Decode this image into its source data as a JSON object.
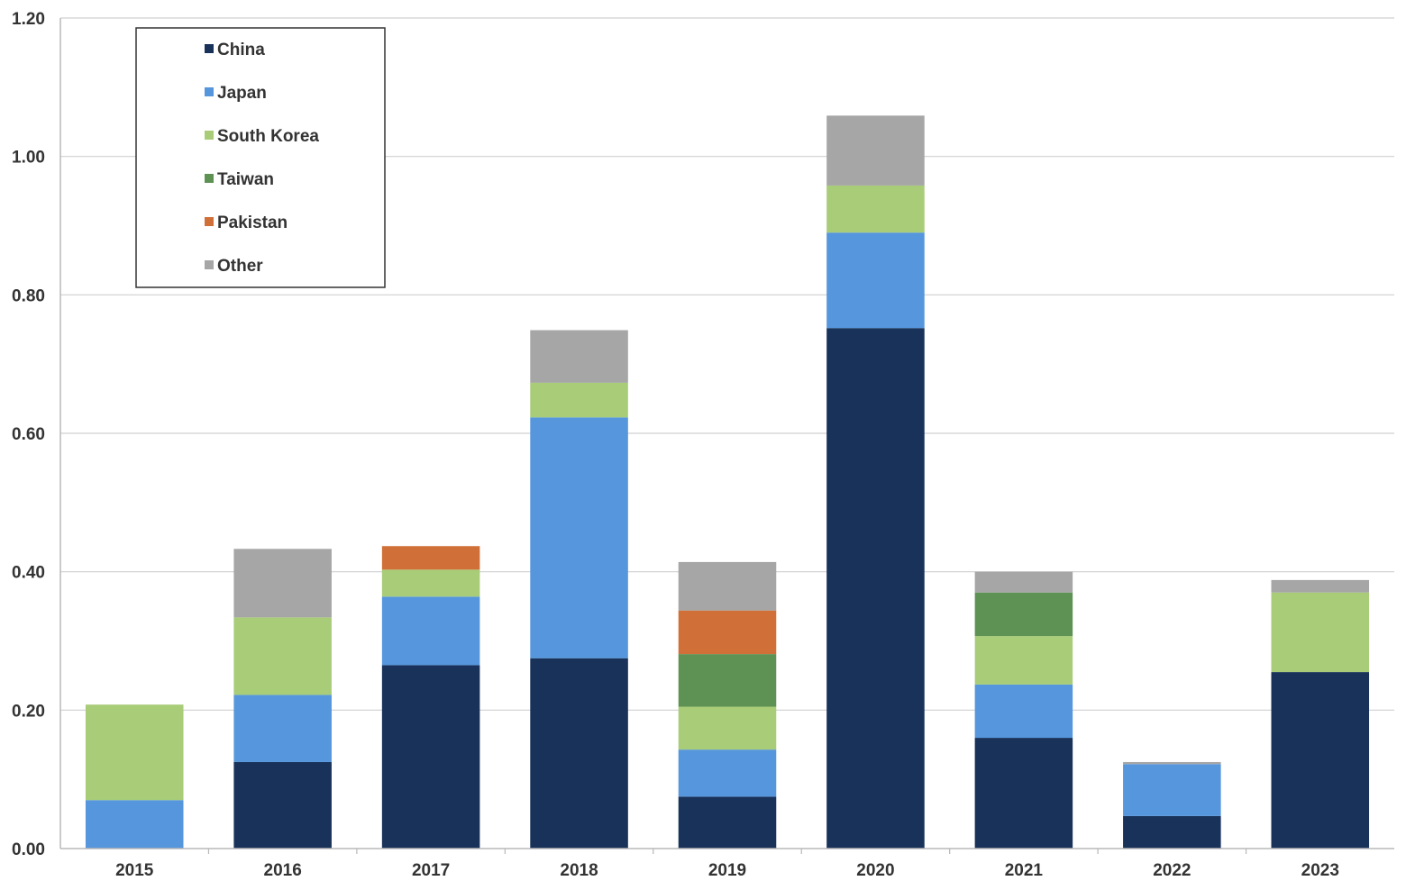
{
  "chart_data": {
    "type": "bar",
    "stacked": true,
    "title": "",
    "xlabel": "",
    "ylabel": "",
    "categories": [
      "2015",
      "2016",
      "2017",
      "2018",
      "2019",
      "2020",
      "2021",
      "2022",
      "2023"
    ],
    "series": [
      {
        "name": "China",
        "color": "#18325a",
        "values": [
          0.0,
          0.125,
          0.265,
          0.275,
          0.075,
          0.752,
          0.16,
          0.047,
          0.255
        ]
      },
      {
        "name": "Japan",
        "color": "#5596dc",
        "values": [
          0.07,
          0.097,
          0.099,
          0.348,
          0.068,
          0.138,
          0.077,
          0.075,
          0.0
        ]
      },
      {
        "name": "South Korea",
        "color": "#a8cc78",
        "values": [
          0.138,
          0.112,
          0.039,
          0.05,
          0.062,
          0.068,
          0.07,
          0.0,
          0.115
        ]
      },
      {
        "name": "Taiwan",
        "color": "#5e9254",
        "values": [
          0.0,
          0.0,
          0.0,
          0.0,
          0.076,
          0.0,
          0.063,
          0.0,
          0.0
        ]
      },
      {
        "name": "Pakistan",
        "color": "#d07038",
        "values": [
          0.0,
          0.0,
          0.034,
          0.0,
          0.063,
          0.0,
          0.0,
          0.0,
          0.0
        ]
      },
      {
        "name": "Other",
        "color": "#a6a6a6",
        "values": [
          0.0,
          0.099,
          0.0,
          0.076,
          0.07,
          0.101,
          0.03,
          0.003,
          0.018
        ]
      }
    ],
    "ylim": [
      0,
      1.2
    ],
    "yticks": [
      "0.00",
      "0.20",
      "0.40",
      "0.60",
      "0.80",
      "1.00",
      "1.20"
    ],
    "grid": true,
    "legend_position": "top-left"
  }
}
